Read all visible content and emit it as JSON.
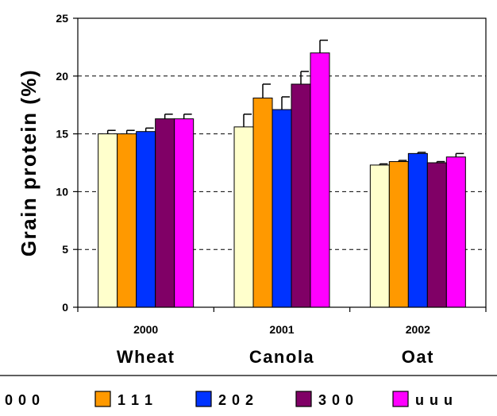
{
  "chart_data": {
    "type": "bar",
    "ylabel": "Grain protein (%)",
    "ylim": [
      0,
      25
    ],
    "yticks": [
      0,
      5,
      10,
      15,
      20,
      25
    ],
    "grid": "dashed horizontal",
    "groups": [
      {
        "year": "2000",
        "crop": "Wheat"
      },
      {
        "year": "2001",
        "crop": "Canola"
      },
      {
        "year": "2002",
        "crop": "Oat"
      }
    ],
    "series": [
      {
        "name": "0 0 0",
        "color": "#ffffcc",
        "values": [
          15.0,
          15.6,
          12.3
        ],
        "errors": [
          0.3,
          1.1,
          0.1
        ]
      },
      {
        "name": "1 1 1",
        "color": "#ff9900",
        "values": [
          15.0,
          18.1,
          12.6
        ],
        "errors": [
          0.3,
          1.2,
          0.1
        ]
      },
      {
        "name": "2 0 2",
        "color": "#0033ff",
        "values": [
          15.2,
          17.1,
          13.3
        ],
        "errors": [
          0.3,
          1.1,
          0.1
        ]
      },
      {
        "name": "3 0 0",
        "color": "#800066",
        "values": [
          16.3,
          19.3,
          12.5
        ],
        "errors": [
          0.4,
          1.1,
          0.1
        ]
      },
      {
        "name": "u u u",
        "color": "#ff00ff",
        "values": [
          16.3,
          22.0,
          13.0
        ],
        "errors": [
          0.4,
          1.1,
          0.3
        ]
      }
    ]
  }
}
